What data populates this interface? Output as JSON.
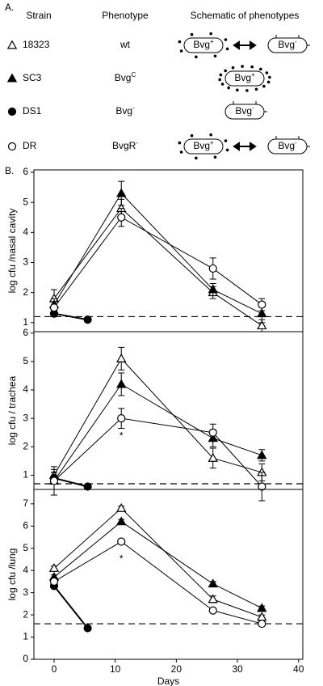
{
  "panel_labels": [
    "A.",
    "B."
  ],
  "legend_table": {
    "headers": [
      "Strain",
      "Phenotype",
      "Schematic of phenotypes"
    ]
  },
  "chart_data": [
    {
      "type": "line",
      "ylabel": "log cfu /nasal cavity",
      "xlim": [
        -3.3,
        40.7
      ],
      "ylim": [
        0.7,
        6.08
      ],
      "yticks": [
        1,
        2,
        3,
        4,
        5,
        6
      ],
      "detection_limit": 1.2,
      "series": [
        {
          "name": "18323",
          "phenotype": {
            "base": "wt"
          },
          "schematic": [
            {
              "base": "Bvg",
              "sup": "+"
            },
            {
              "base": "Bvg",
              "sup": "-"
            }
          ],
          "marker": "open-triangle",
          "color": "#000000",
          "linewidth": 1,
          "x": [
            0,
            11,
            26,
            34
          ],
          "values": [
            1.8,
            4.8,
            2.0,
            0.9
          ],
          "errors": [
            0.3,
            0.3,
            0.2,
            0.2
          ]
        },
        {
          "name": "SC3",
          "phenotype": {
            "base": "Bvg",
            "sup": "C"
          },
          "schematic": [
            {
              "base": "Bvg",
              "sup": "+"
            }
          ],
          "marker": "filled-triangle",
          "color": "#000000",
          "linewidth": 1,
          "x": [
            0,
            11,
            26,
            34
          ],
          "values": [
            1.6,
            5.3,
            2.1,
            1.3
          ],
          "errors": [
            0.2,
            0.4,
            0.2,
            0.3
          ]
        },
        {
          "name": "DS1",
          "phenotype": {
            "base": "Bvg",
            "sup": "-"
          },
          "schematic": [
            {
              "base": "Bvg",
              "sup": "-"
            }
          ],
          "marker": "filled-circle",
          "color": "#000000",
          "linewidth": 2,
          "x": [
            0,
            5.5
          ],
          "values": [
            1.3,
            1.1
          ],
          "errors": [
            0.1,
            null
          ]
        },
        {
          "name": "DR",
          "phenotype": {
            "base": "BvgR",
            "sup": "-"
          },
          "schematic": [
            {
              "base": "Bvg",
              "sup": "+"
            },
            {
              "base": "Bvg",
              "sup": "-"
            }
          ],
          "marker": "open-circle",
          "color": "#000000",
          "linewidth": 1,
          "x": [
            0,
            11,
            26,
            34
          ],
          "values": [
            1.5,
            4.5,
            2.8,
            1.6
          ],
          "errors": [
            0.2,
            0.3,
            0.35,
            0.2
          ]
        }
      ]
    },
    {
      "type": "line",
      "ylabel": "log cfu / trachea",
      "xlim": [
        -3.3,
        40.7
      ],
      "ylim": [
        0.5,
        6.05
      ],
      "yticks": [
        1,
        2,
        3,
        4,
        5,
        6
      ],
      "detection_limit": 0.7,
      "series": [
        {
          "marker": "open-triangle",
          "color": "#000000",
          "linewidth": 1,
          "x": [
            0,
            11,
            26,
            34
          ],
          "values": [
            1.0,
            5.1,
            1.6,
            1.1
          ],
          "errors": [
            0.2,
            0.4,
            0.35,
            0.3
          ]
        },
        {
          "marker": "filled-triangle",
          "color": "#000000",
          "linewidth": 1,
          "x": [
            0,
            11,
            26,
            34
          ],
          "values": [
            0.8,
            4.2,
            2.3,
            1.7
          ],
          "errors": [
            0.5,
            0.4,
            0.3,
            0.2
          ]
        },
        {
          "marker": "filled-circle",
          "color": "#000000",
          "linewidth": 2,
          "x": [
            0,
            5.5
          ],
          "values": [
            0.9,
            0.6
          ],
          "errors": [
            0.2,
            null
          ]
        },
        {
          "marker": "open-circle",
          "color": "#000000",
          "linewidth": 1,
          "x": [
            0,
            11,
            26,
            34
          ],
          "values": [
            0.8,
            3.0,
            2.5,
            0.6
          ],
          "errors": [
            0.3,
            0.35,
            0.3,
            0.5
          ],
          "point_annotations": [
            null,
            "*",
            null,
            null
          ]
        }
      ]
    },
    {
      "type": "line",
      "ylabel": "log cfu /lung",
      "xlabel": "Days",
      "xlim": [
        -3.3,
        40.7
      ],
      "xticks": [
        0,
        10,
        20,
        30,
        40
      ],
      "ylim": [
        0,
        7.65
      ],
      "yticks": [
        0,
        1,
        2,
        3,
        4,
        5,
        6,
        7
      ],
      "detection_limit": 1.6,
      "series": [
        {
          "marker": "open-triangle",
          "color": "#000000",
          "linewidth": 1,
          "x": [
            0,
            11,
            26,
            34
          ],
          "values": [
            4.1,
            6.8,
            2.7,
            1.9
          ],
          "errors": [
            0.1,
            0.1,
            0.15,
            0.1
          ]
        },
        {
          "marker": "filled-triangle",
          "color": "#000000",
          "linewidth": 1,
          "x": [
            0,
            11,
            26,
            34
          ],
          "values": [
            3.7,
            6.2,
            3.4,
            2.3
          ],
          "errors": [
            0.1,
            0.1,
            0.1,
            0.1
          ]
        },
        {
          "marker": "filled-circle",
          "color": "#000000",
          "linewidth": 2,
          "x": [
            0,
            5.5
          ],
          "values": [
            3.3,
            1.4
          ],
          "errors": [
            0.1,
            null
          ]
        },
        {
          "marker": "open-circle",
          "color": "#000000",
          "linewidth": 1,
          "x": [
            0,
            11,
            26,
            34
          ],
          "values": [
            3.5,
            5.3,
            2.2,
            1.6
          ],
          "errors": [
            0.1,
            0.1,
            0.1,
            0.1
          ],
          "point_annotations": [
            null,
            "*",
            null,
            null
          ]
        }
      ]
    }
  ]
}
